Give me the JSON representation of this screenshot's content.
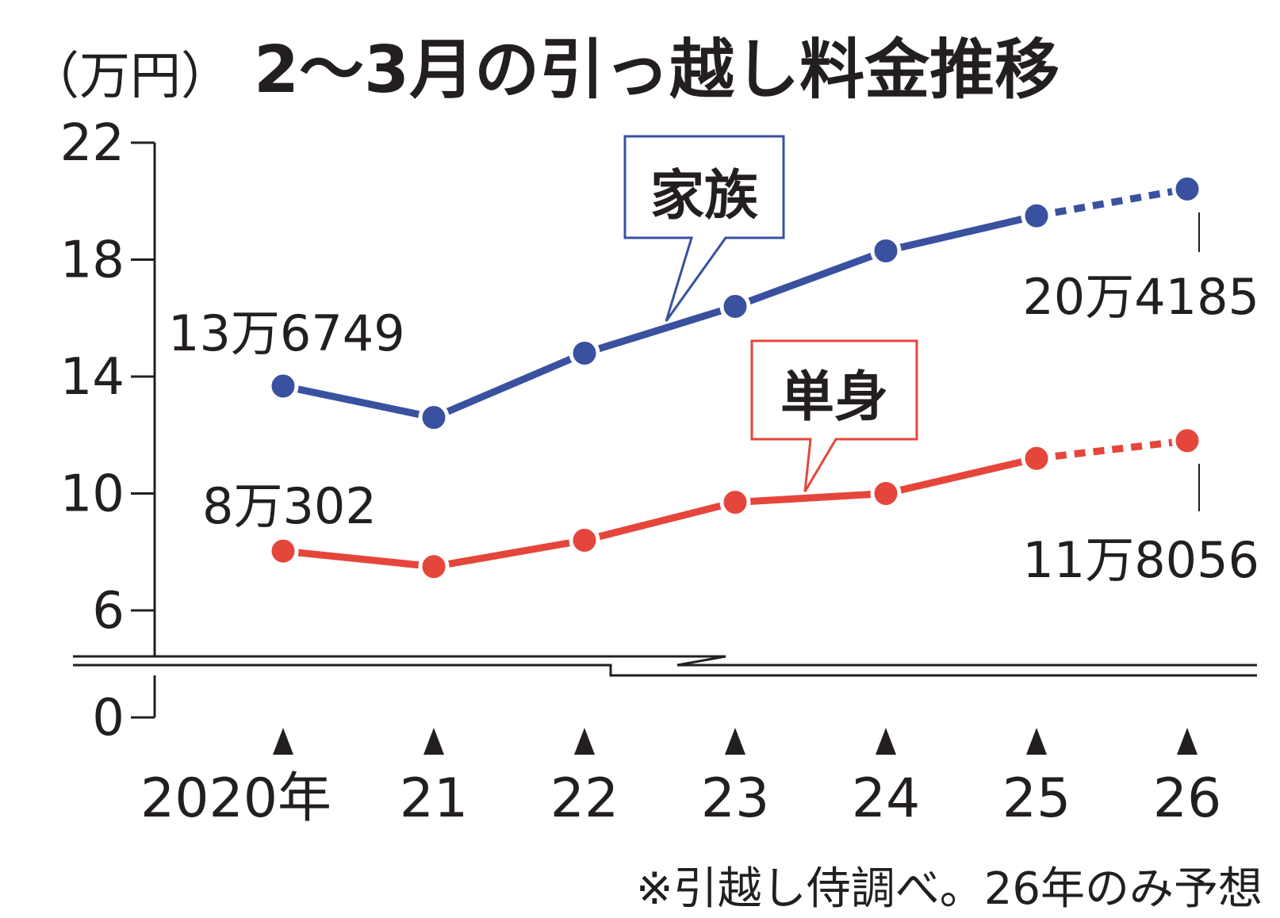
{
  "chart_data": {
    "type": "line",
    "title": "2〜3月の引っ越し料金推移",
    "unit_label": "（万円）",
    "x_categories": [
      "2020年",
      "21",
      "22",
      "23",
      "24",
      "25",
      "26"
    ],
    "y_ticks": [
      "22",
      "18",
      "14",
      "10",
      "6",
      "0"
    ],
    "ylim": [
      0,
      22
    ],
    "axis_break": true,
    "grid": false,
    "series": [
      {
        "name": "家族",
        "color": "#3a51a0",
        "values": [
          13.6749,
          12.6,
          14.8,
          16.4,
          18.3,
          19.5,
          20.4185
        ],
        "forecast_from_index": 5,
        "first_label": "13万6749",
        "last_label": "20万4185"
      },
      {
        "name": "単身",
        "color": "#e5463b",
        "values": [
          8.0302,
          7.5,
          8.4,
          9.7,
          10.0,
          11.2,
          11.8056
        ],
        "forecast_from_index": 5,
        "first_label": "8万302",
        "last_label": "11万8056"
      }
    ],
    "note": "※引越し侍調べ。26年のみ予想"
  }
}
